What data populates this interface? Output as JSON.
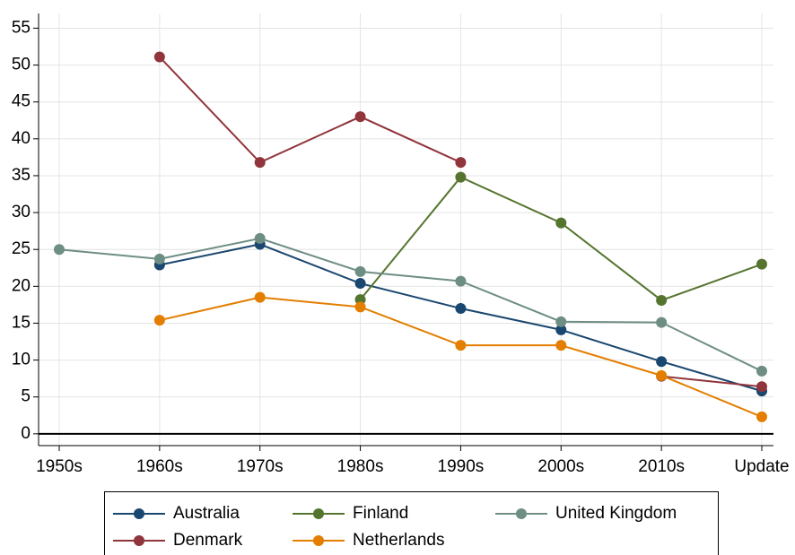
{
  "chart_data": {
    "type": "line",
    "categories": [
      "1950s",
      "1960s",
      "1970s",
      "1980s",
      "1990s",
      "2000s",
      "2010s",
      "Update"
    ],
    "series": [
      {
        "name": "Australia",
        "color": "#1a476f",
        "values": [
          null,
          22.9,
          25.7,
          20.4,
          17,
          14.1,
          9.8,
          5.8
        ]
      },
      {
        "name": "Denmark",
        "color": "#90353b",
        "values": [
          null,
          51.1,
          36.8,
          43,
          36.8,
          null,
          7.8,
          6.4
        ]
      },
      {
        "name": "Finland",
        "color": "#55752f",
        "values": [
          null,
          null,
          null,
          18.2,
          34.8,
          28.6,
          18.1,
          23
        ]
      },
      {
        "name": "Netherlands",
        "color": "#e37e00",
        "values": [
          null,
          15.4,
          18.5,
          17.2,
          12,
          12,
          7.9,
          2.3
        ]
      },
      {
        "name": "United Kingdom",
        "color": "#6e8e84",
        "values": [
          25,
          23.7,
          26.5,
          22,
          20.7,
          15.2,
          15.1,
          8.5
        ]
      }
    ],
    "ylim": [
      -1.6,
      57
    ],
    "yticks": [
      0,
      5,
      10,
      15,
      20,
      25,
      30,
      35,
      40,
      45,
      50,
      55
    ],
    "grid": true,
    "legend": "bottom"
  }
}
